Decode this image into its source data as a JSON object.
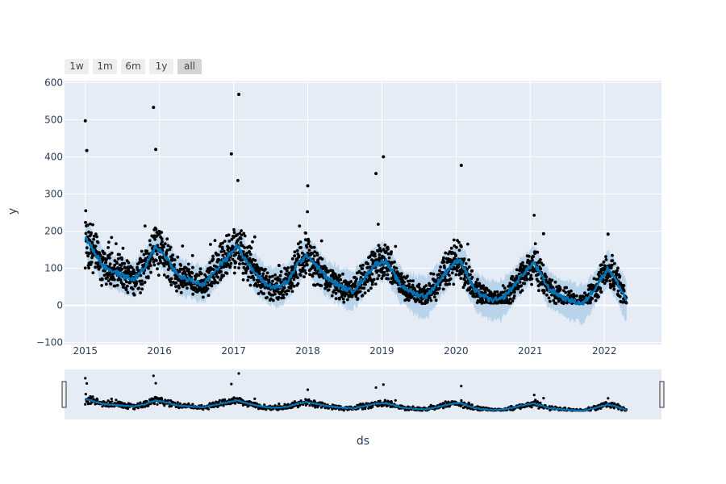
{
  "range_selector": {
    "buttons": [
      {
        "label": "1w",
        "active": false
      },
      {
        "label": "1m",
        "active": false
      },
      {
        "label": "6m",
        "active": false
      },
      {
        "label": "1y",
        "active": false
      },
      {
        "label": "all",
        "active": true
      }
    ]
  },
  "colors": {
    "plot_bg": "#e5ecf6",
    "grid": "#ffffff",
    "points": "#000000",
    "forecast_line": "#0072b2",
    "uncertainty_band": "#a8cbe6",
    "axis_text": "#2a3f5f"
  },
  "chart_data": {
    "type": "line",
    "title": "",
    "xlabel": "ds",
    "ylabel": "y",
    "xlim": [
      2014.72,
      2022.77
    ],
    "ylim": [
      -105,
      605
    ],
    "x_ticks": [
      "2015",
      "2016",
      "2017",
      "2018",
      "2019",
      "2020",
      "2021",
      "2022"
    ],
    "y_ticks": [
      "−100",
      "0",
      "100",
      "200",
      "300",
      "400",
      "500",
      "600"
    ],
    "grid": true,
    "range_slider": true,
    "series": [
      {
        "kind": "forecast",
        "x": [
          2015.0,
          2015.25,
          2015.5,
          2015.65,
          2015.8,
          2015.95,
          2016.1,
          2016.25,
          2016.45,
          2016.6,
          2016.75,
          2016.9,
          2017.05,
          2017.25,
          2017.45,
          2017.6,
          2017.75,
          2017.85,
          2018.0,
          2018.25,
          2018.45,
          2018.6,
          2018.75,
          2018.9,
          2019.05,
          2019.25,
          2019.45,
          2019.6,
          2019.75,
          2019.9,
          2020.05,
          2020.25,
          2020.45,
          2020.6,
          2020.75,
          2020.9,
          2021.05,
          2021.25,
          2021.45,
          2021.6,
          2021.72,
          2021.9,
          2022.05,
          2022.15,
          2022.3
        ],
        "y": [
          182,
          105,
          80,
          70,
          100,
          160,
          128,
          80,
          65,
          55,
          95,
          125,
          162,
          95,
          55,
          48,
          68,
          110,
          135,
          75,
          50,
          38,
          70,
          110,
          120,
          55,
          30,
          25,
          60,
          100,
          125,
          40,
          15,
          15,
          45,
          85,
          115,
          45,
          20,
          10,
          5,
          55,
          100,
          70,
          15
        ]
      },
      {
        "kind": "upper_bound",
        "x": [
          2015.0,
          2015.25,
          2015.5,
          2015.65,
          2015.8,
          2015.95,
          2016.1,
          2016.25,
          2016.45,
          2016.6,
          2016.75,
          2016.9,
          2017.05,
          2017.25,
          2017.45,
          2017.6,
          2017.75,
          2017.85,
          2018.0,
          2018.25,
          2018.45,
          2018.6,
          2018.75,
          2018.9,
          2019.05,
          2019.25,
          2019.45,
          2019.6,
          2019.75,
          2019.9,
          2020.05,
          2020.25,
          2020.45,
          2020.6,
          2020.75,
          2020.9,
          2021.05,
          2021.25,
          2021.45,
          2021.6,
          2021.72,
          2021.9,
          2022.05,
          2022.15,
          2022.3
        ],
        "y": [
          230,
          150,
          125,
          118,
          148,
          208,
          178,
          128,
          112,
          104,
          142,
          172,
          210,
          145,
          105,
          98,
          115,
          158,
          182,
          122,
          100,
          88,
          118,
          160,
          168,
          104,
          80,
          76,
          110,
          148,
          172,
          88,
          66,
          66,
          95,
          132,
          160,
          92,
          70,
          60,
          55,
          100,
          148,
          120,
          65
        ]
      },
      {
        "kind": "lower_bound",
        "x": [
          2015.0,
          2015.25,
          2015.5,
          2015.65,
          2015.8,
          2015.95,
          2016.1,
          2016.25,
          2016.45,
          2016.6,
          2016.75,
          2016.9,
          2017.05,
          2017.25,
          2017.45,
          2017.6,
          2017.75,
          2017.85,
          2018.0,
          2018.25,
          2018.45,
          2018.6,
          2018.75,
          2018.9,
          2019.05,
          2019.25,
          2019.45,
          2019.6,
          2019.75,
          2019.9,
          2020.05,
          2020.25,
          2020.45,
          2020.6,
          2020.75,
          2020.9,
          2021.05,
          2021.25,
          2021.45,
          2021.6,
          2021.72,
          2021.9,
          2022.05,
          2022.15,
          2022.3
        ],
        "y": [
          135,
          58,
          34,
          22,
          52,
          112,
          80,
          32,
          18,
          8,
          46,
          78,
          112,
          45,
          5,
          -2,
          20,
          62,
          88,
          25,
          0,
          -12,
          22,
          62,
          72,
          5,
          -25,
          -35,
          10,
          52,
          78,
          -12,
          -38,
          -40,
          -5,
          38,
          70,
          -5,
          -32,
          -40,
          -50,
          8,
          52,
          20,
          -45
        ]
      }
    ],
    "observations": {
      "x_range": [
        2015.0,
        2022.3
      ],
      "count_estimate": 2600,
      "notable_points": [
        {
          "x": 2015.0,
          "y": 497
        },
        {
          "x": 2015.02,
          "y": 417
        },
        {
          "x": 2015.92,
          "y": 533
        },
        {
          "x": 2015.95,
          "y": 420
        },
        {
          "x": 2017.07,
          "y": 568
        },
        {
          "x": 2016.97,
          "y": 408
        },
        {
          "x": 2018.0,
          "y": 322
        },
        {
          "x": 2019.02,
          "y": 400
        },
        {
          "x": 2018.92,
          "y": 355
        },
        {
          "x": 2020.07,
          "y": 377
        },
        {
          "x": 2021.18,
          "y": 193
        },
        {
          "x": 2022.05,
          "y": 192
        }
      ]
    }
  }
}
